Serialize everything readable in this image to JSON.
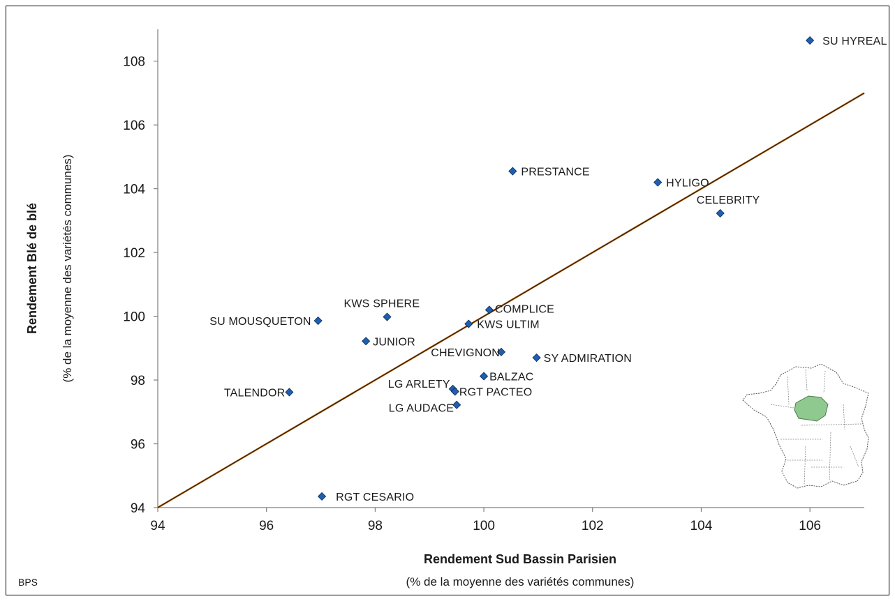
{
  "chart_data": {
    "type": "scatter",
    "xlabel": "Rendement Sud Bassin Parisien",
    "xlabel_sub": "(% de la moyenne des variétés communes)",
    "ylabel": "Rendement Blé de blé",
    "ylabel_sub": "(% de la moyenne des variétés communes)",
    "xlim": [
      94,
      107
    ],
    "ylim": [
      94,
      109
    ],
    "xticks": [
      94,
      96,
      98,
      100,
      102,
      104,
      106
    ],
    "yticks": [
      94,
      96,
      98,
      100,
      102,
      104,
      106,
      108
    ],
    "grid": false,
    "marker_color": "#1f5fb0",
    "marker_edge_color": "#0d2a52",
    "line_color": "#b35a00",
    "reference_line": {
      "x": [
        94,
        107
      ],
      "y": [
        94,
        107
      ]
    },
    "points": [
      {
        "name": "SU HYREAL",
        "x": 106.0,
        "y": 108.65
      },
      {
        "name": "PRESTANCE",
        "x": 100.53,
        "y": 104.55
      },
      {
        "name": "HYLIGO",
        "x": 103.2,
        "y": 104.2
      },
      {
        "name": "CELEBRITY",
        "x": 104.35,
        "y": 103.23
      },
      {
        "name": "KWS SPHERE",
        "x": 98.22,
        "y": 99.98
      },
      {
        "name": "SU MOUSQUETON",
        "x": 96.95,
        "y": 99.86
      },
      {
        "name": "COMPLICE",
        "x": 100.1,
        "y": 100.2
      },
      {
        "name": "KWS ULTIM",
        "x": 99.72,
        "y": 99.76
      },
      {
        "name": "JUNIOR",
        "x": 97.83,
        "y": 99.22
      },
      {
        "name": "CHEVIGNON",
        "x": 100.32,
        "y": 98.88
      },
      {
        "name": "SY ADMIRATION",
        "x": 100.97,
        "y": 98.7
      },
      {
        "name": "BALZAC",
        "x": 100.0,
        "y": 98.12
      },
      {
        "name": "LG ARLETY",
        "x": 99.43,
        "y": 97.72
      },
      {
        "name": "RGT PACTEO",
        "x": 99.47,
        "y": 97.64
      },
      {
        "name": "TALENDOR",
        "x": 96.42,
        "y": 97.62
      },
      {
        "name": "LG AUDACE",
        "x": 99.5,
        "y": 97.22
      },
      {
        "name": "RGT CESARIO",
        "x": 97.02,
        "y": 94.35
      }
    ]
  },
  "footer": {
    "note": "BPS"
  },
  "inset": {
    "region_color": "#8fc98f"
  }
}
